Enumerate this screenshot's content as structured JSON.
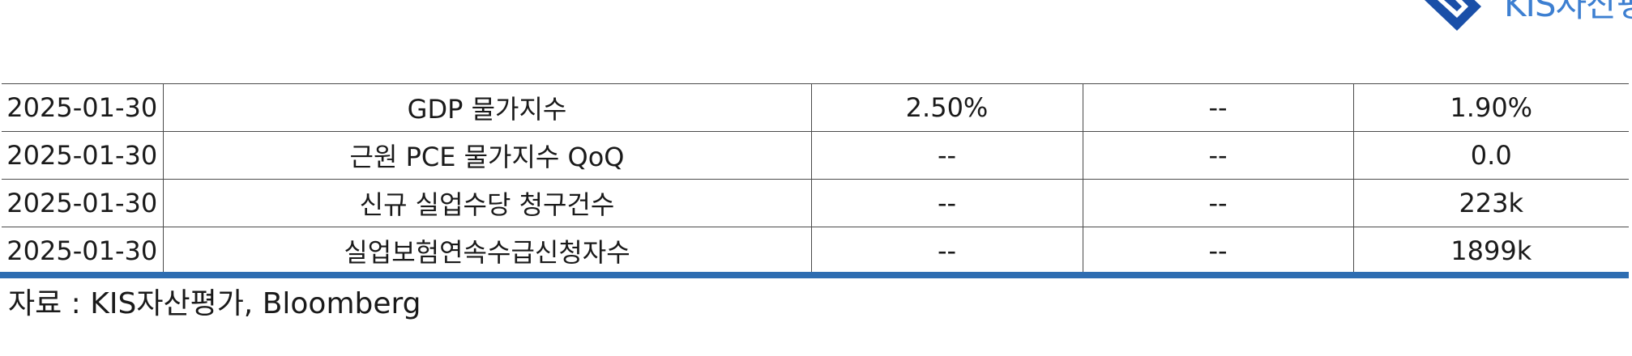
{
  "logo": {
    "text": "KIS자산평"
  },
  "table": {
    "rows": [
      [
        "2025-01-30",
        "GDP 물가지수",
        "2.50%",
        "--",
        "1.90%"
      ],
      [
        "2025-01-30",
        "근원 PCE 물가지수 QoQ",
        "--",
        "--",
        "0.0"
      ],
      [
        "2025-01-30",
        "신규 실업수당 청구건수",
        "--",
        "--",
        "223k"
      ],
      [
        "2025-01-30",
        "실업보험연속수급신청자수",
        "--",
        "--",
        "1899k"
      ]
    ]
  },
  "source": "자료 : KIS자산평가, Bloomberg",
  "colors": {
    "accent": "#2e6db1",
    "logo_blue": "#1a4fa8",
    "logo_text": "#3d7fd1"
  }
}
